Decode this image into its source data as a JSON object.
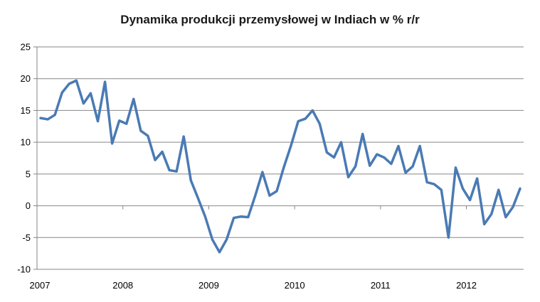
{
  "chart_data": {
    "type": "line",
    "title": "Dynamika produkcji przemysłowej w Indiach w % r/r",
    "xlabel": "",
    "ylabel": "",
    "ylim": [
      -10,
      25
    ],
    "yticks": [
      -10,
      -5,
      0,
      5,
      10,
      15,
      20,
      25
    ],
    "xticks": [
      "2007",
      "2008",
      "2009",
      "2010",
      "2011",
      "2012"
    ],
    "grid": "horizontal",
    "legend": "none",
    "color": "#4a7ab4",
    "series": [
      {
        "values": [
          13.8,
          13.6,
          14.3,
          17.8,
          19.2,
          19.7,
          16.1,
          17.7,
          13.3,
          19.5,
          9.8,
          13.4,
          12.9,
          16.8,
          11.8,
          11.0,
          7.2,
          8.5,
          5.6,
          5.4,
          10.9,
          4.0,
          1.2,
          -1.7,
          -5.3,
          -7.3,
          -5.3,
          -1.9,
          -1.7,
          -1.8,
          1.6,
          5.3,
          1.6,
          2.3,
          6.1,
          9.5,
          13.3,
          13.7,
          15.0,
          12.9,
          8.4,
          7.6,
          10.0,
          4.5,
          6.2,
          11.3,
          6.3,
          8.1,
          7.6,
          6.6,
          9.4,
          5.2,
          6.2,
          9.4,
          3.7,
          3.4,
          2.5,
          -5.0,
          6.0,
          2.7,
          0.9,
          4.3,
          -2.9,
          -1.3,
          2.5,
          -1.8,
          -0.2,
          2.7
        ]
      }
    ]
  }
}
